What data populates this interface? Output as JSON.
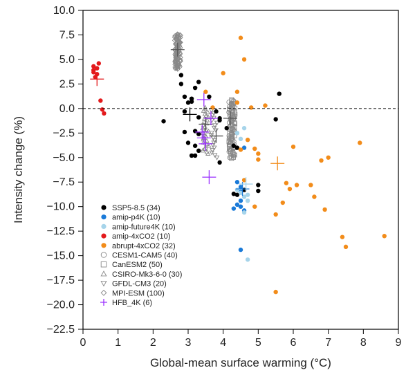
{
  "chart_data": {
    "type": "scatter",
    "xlabel": "Global-mean surface warming (°C)",
    "ylabel": "Intensity change (%)",
    "xlim": [
      0,
      9
    ],
    "ylim": [
      -22.5,
      10
    ],
    "x_ticks": [
      "0",
      "1",
      "2",
      "3",
      "4",
      "5",
      "6",
      "7",
      "8",
      "9"
    ],
    "y_ticks": [
      "10.0",
      "7.5",
      "5.0",
      "2.5",
      "0.0",
      "−2.5",
      "−5.0",
      "−7.5",
      "−10.0",
      "−12.5",
      "−15.0",
      "−17.5",
      "−20.0",
      "−22.5"
    ],
    "reference_line": {
      "y": 0,
      "style": "dashed"
    },
    "legend_position": "bottom-left",
    "legend": [
      "SSP5-8.5 (34)",
      "amip-p4K (10)",
      "amip-future4K (10)",
      "amip-4xCO2 (10)",
      "abrupt-4xCO2 (32)",
      "CESM1-CAM5 (40)",
      "CanESM2 (50)",
      "CSIRO-Mk3-6-0 (30)",
      "GFDL-CM3 (20)",
      "MPI-ESM (100)",
      "HFB_4K (6)"
    ],
    "series": [
      {
        "name": "SSP5-8.5",
        "color": "#000000",
        "marker": "dot",
        "points": [
          [
            2.3,
            -1.3
          ],
          [
            2.8,
            3.4
          ],
          [
            2.8,
            2.5
          ],
          [
            2.9,
            1.2
          ],
          [
            2.9,
            -0.3
          ],
          [
            3.0,
            0.6
          ],
          [
            3.1,
            0.7
          ],
          [
            2.9,
            -2.4
          ],
          [
            3.2,
            -2.3
          ],
          [
            3.3,
            -2.6
          ],
          [
            3.0,
            -3.5
          ],
          [
            3.2,
            -3.8
          ],
          [
            3.1,
            -4.8
          ],
          [
            3.2,
            -4.8
          ],
          [
            3.3,
            -4.3
          ],
          [
            3.1,
            1.0
          ],
          [
            3.3,
            -0.9
          ],
          [
            3.3,
            2.7
          ],
          [
            3.2,
            2.1
          ],
          [
            3.6,
            1.2
          ],
          [
            3.8,
            -0.3
          ],
          [
            3.9,
            -1.0
          ],
          [
            3.9,
            -1.2
          ],
          [
            4.1,
            -2.0
          ],
          [
            4.3,
            -3.8
          ],
          [
            4.4,
            -4.0
          ],
          [
            3.9,
            -5.5
          ],
          [
            4.3,
            -8.7
          ],
          [
            4.6,
            -8.3
          ],
          [
            4.4,
            -8.8
          ],
          [
            5.0,
            -7.8
          ],
          [
            5.0,
            -8.4
          ],
          [
            5.5,
            -1.1
          ],
          [
            5.6,
            1.5
          ]
        ]
      },
      {
        "name": "amip-p4K",
        "color": "#1a7ad8",
        "marker": "dot",
        "points": [
          [
            4.4,
            -7.5
          ],
          [
            4.5,
            -8.0
          ],
          [
            4.5,
            -8.5
          ],
          [
            4.4,
            -9.8
          ],
          [
            4.5,
            -10.0
          ],
          [
            4.6,
            -10.4
          ],
          [
            4.3,
            -10.2
          ],
          [
            4.5,
            -9.4
          ],
          [
            4.5,
            -14.4
          ],
          [
            4.6,
            -4.0
          ]
        ]
      },
      {
        "name": "amip-future4K",
        "color": "#a6d4ea",
        "marker": "dot",
        "points": [
          [
            4.4,
            -8.3
          ],
          [
            4.5,
            -8.6
          ],
          [
            4.6,
            -9.0
          ],
          [
            4.7,
            -8.8
          ],
          [
            4.7,
            -9.4
          ],
          [
            4.6,
            -10.6
          ],
          [
            4.7,
            -15.4
          ],
          [
            4.6,
            -2.0
          ],
          [
            4.5,
            -3.1
          ],
          [
            4.4,
            -2.5
          ]
        ]
      },
      {
        "name": "amip-4xCO2",
        "color": "#e31a1c",
        "marker": "dot",
        "points": [
          [
            0.3,
            4.3
          ],
          [
            0.3,
            3.9
          ],
          [
            0.3,
            3.7
          ],
          [
            0.4,
            4.1
          ],
          [
            0.4,
            3.5
          ],
          [
            0.45,
            4.6
          ],
          [
            0.35,
            3.2
          ],
          [
            0.5,
            0.8
          ],
          [
            0.55,
            -0.1
          ],
          [
            0.6,
            -0.5
          ]
        ]
      },
      {
        "name": "abrupt-4xCO2",
        "color": "#f28c1a",
        "marker": "dot",
        "points": [
          [
            3.5,
            1.7
          ],
          [
            3.7,
            0.1
          ],
          [
            4.0,
            3.6
          ],
          [
            4.5,
            7.2
          ],
          [
            4.6,
            5.0
          ],
          [
            4.4,
            1.7
          ],
          [
            4.4,
            0.6
          ],
          [
            4.8,
            0.1
          ],
          [
            5.2,
            0.3
          ],
          [
            4.5,
            -4.2
          ],
          [
            4.7,
            -3.2
          ],
          [
            4.9,
            -4.1
          ],
          [
            5.0,
            -4.6
          ],
          [
            5.0,
            -5.2
          ],
          [
            4.6,
            -7.3
          ],
          [
            4.9,
            -10.0
          ],
          [
            5.5,
            -10.8
          ],
          [
            5.7,
            -9.6
          ],
          [
            5.8,
            -7.6
          ],
          [
            5.9,
            -8.2
          ],
          [
            6.0,
            -3.9
          ],
          [
            6.1,
            -7.8
          ],
          [
            6.5,
            -7.8
          ],
          [
            6.6,
            -9.0
          ],
          [
            6.8,
            -5.3
          ],
          [
            7.0,
            -5.0
          ],
          [
            6.9,
            -10.3
          ],
          [
            7.4,
            -13.1
          ],
          [
            7.5,
            -14.1
          ],
          [
            7.9,
            -3.5
          ],
          [
            8.6,
            -13.0
          ],
          [
            5.5,
            -18.7
          ]
        ]
      }
    ],
    "model_clusters": [
      {
        "name": "MPI-ESM",
        "marker": "diamond",
        "color": "#888888",
        "count": 100,
        "x_center": 2.7,
        "y_range": [
          4.0,
          7.6
        ]
      },
      {
        "name": "CESM1-CAM5",
        "marker": "circle",
        "color": "#888888",
        "count": 40,
        "x_center": 4.25,
        "y_range": [
          -5.0,
          0.8
        ]
      },
      {
        "name": "CanESM2",
        "marker": "square",
        "color": "#888888",
        "count": 50,
        "x_center": 4.25,
        "y_range": [
          -5.1,
          0.9
        ]
      },
      {
        "name": "CSIRO-Mk3-6-0",
        "marker": "triangle",
        "color": "#888888",
        "count": 30,
        "x_center": 3.5,
        "y_range": [
          -4.6,
          0.1
        ]
      },
      {
        "name": "GFDL-CM3",
        "marker": "triangle-down",
        "color": "#888888",
        "count": 20,
        "x_center": 3.75,
        "y_range": [
          -5.0,
          -0.2
        ]
      }
    ],
    "crosses": [
      {
        "x": 0.4,
        "y": 3.0,
        "color": "#e31a1c"
      },
      {
        "x": 3.05,
        "y": -0.6,
        "color": "#000000"
      },
      {
        "x": 4.55,
        "y": -8.2,
        "color": "#1a7ad8"
      },
      {
        "x": 4.65,
        "y": -7.7,
        "color": "#a6d4ea"
      },
      {
        "x": 5.55,
        "y": -5.6,
        "color": "#f28c1a"
      },
      {
        "x": 2.7,
        "y": 6.0,
        "color": "#555555"
      },
      {
        "x": 4.2,
        "y": -1.0,
        "color": "#555555"
      },
      {
        "x": 3.5,
        "y": -1.6,
        "color": "#555555"
      },
      {
        "x": 3.8,
        "y": -2.8,
        "color": "#555555"
      },
      {
        "x": 3.45,
        "y": 0.9,
        "color": "#9b30ff"
      },
      {
        "x": 3.65,
        "y": -1.0,
        "color": "#9b30ff"
      },
      {
        "x": 3.4,
        "y": -2.4,
        "color": "#9b30ff"
      },
      {
        "x": 3.45,
        "y": -3.0,
        "color": "#9b30ff"
      },
      {
        "x": 3.5,
        "y": -3.6,
        "color": "#9b30ff"
      },
      {
        "x": 3.6,
        "y": -7.0,
        "color": "#9b30ff"
      }
    ],
    "legend_styles": [
      {
        "marker": "dot",
        "color": "#000000"
      },
      {
        "marker": "dot",
        "color": "#1a7ad8"
      },
      {
        "marker": "dot",
        "color": "#a6d4ea"
      },
      {
        "marker": "dot",
        "color": "#e31a1c"
      },
      {
        "marker": "dot",
        "color": "#f28c1a"
      },
      {
        "marker": "circle",
        "color": "#888888"
      },
      {
        "marker": "square",
        "color": "#888888"
      },
      {
        "marker": "triangle",
        "color": "#888888"
      },
      {
        "marker": "triangle-down",
        "color": "#888888"
      },
      {
        "marker": "diamond",
        "color": "#888888"
      },
      {
        "marker": "cross",
        "color": "#9b30ff"
      }
    ]
  }
}
